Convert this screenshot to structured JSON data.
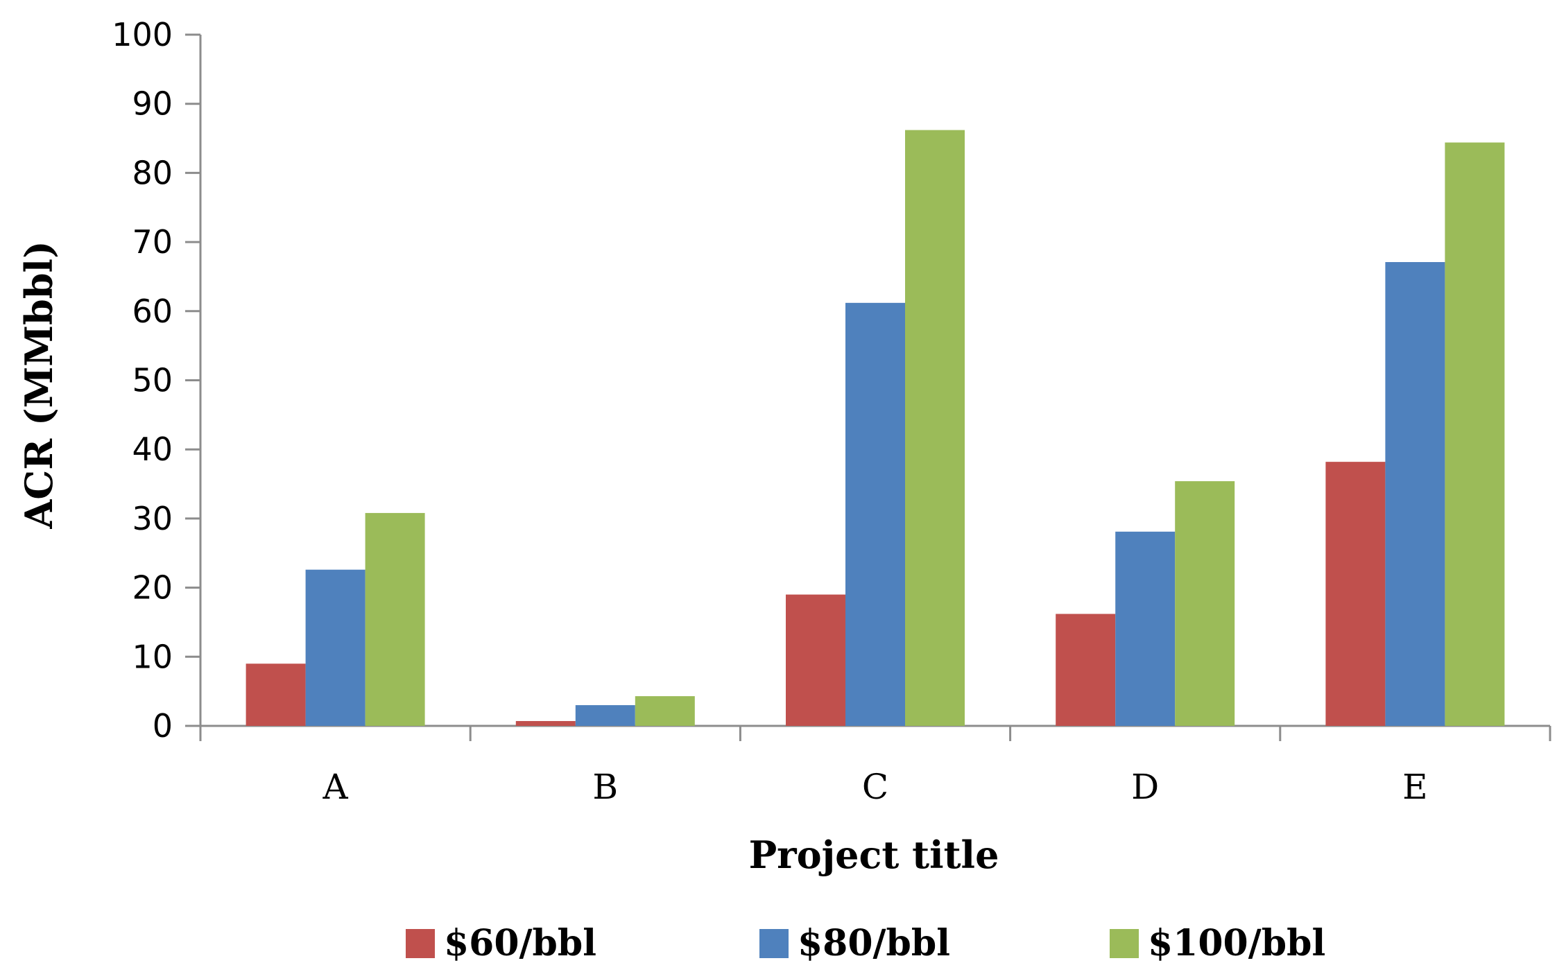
{
  "chart_data": {
    "type": "bar",
    "categories": [
      "A",
      "B",
      "C",
      "D",
      "E"
    ],
    "series": [
      {
        "name": "$60/bbl",
        "color": "#c0504d",
        "values": [
          9,
          0.7,
          19,
          16.2,
          38.2
        ]
      },
      {
        "name": "$80/bbl",
        "color": "#4f81bd",
        "values": [
          22.6,
          3,
          61.2,
          28.1,
          67.1
        ]
      },
      {
        "name": "$100/bbl",
        "color": "#9bbb59",
        "values": [
          30.8,
          4.3,
          86.2,
          35.4,
          84.4
        ]
      }
    ],
    "title": "",
    "xlabel": "Project title",
    "ylabel": "ACR (MMbbl)",
    "ylim": [
      0,
      100
    ],
    "yticks": [
      "0",
      "10",
      "20",
      "30",
      "40",
      "50",
      "60",
      "70",
      "80",
      "90",
      "100"
    ],
    "grid": false,
    "legend_position": "bottom"
  }
}
